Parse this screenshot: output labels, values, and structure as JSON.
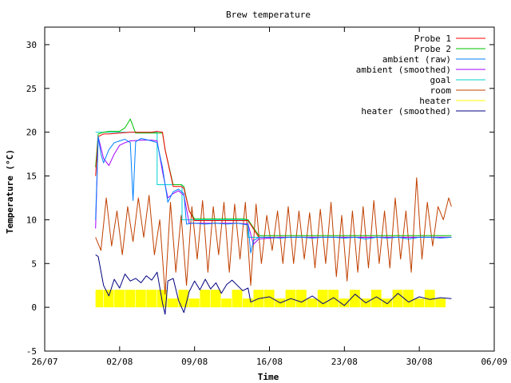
{
  "chart_data": {
    "type": "line",
    "title": "Brew temperature",
    "xlabel": "Time",
    "ylabel": "Temperature (°C)",
    "x_type": "date",
    "x_ticks": [
      "26/07",
      "02/08",
      "09/08",
      "16/08",
      "23/08",
      "30/08",
      "06/09"
    ],
    "y_ticks": [
      -5,
      0,
      5,
      10,
      15,
      20,
      25,
      30
    ],
    "xlim": [
      "2014-07-26",
      "2014-09-06"
    ],
    "ylim": [
      -5,
      32
    ],
    "grid": false,
    "legend_position": "top-right",
    "series": [
      {
        "name": "Probe 1",
        "color": "#ff0000",
        "style": "line",
        "x": [
          "2014-07-30T18:00",
          "2014-07-31T00:00",
          "2014-07-31T12:00",
          "2014-08-01T00:00",
          "2014-08-02T00:00",
          "2014-08-03T00:00",
          "2014-08-04T00:00",
          "2014-08-05T00:00",
          "2014-08-05T12:00",
          "2014-08-06T00:00",
          "2014-08-06T06:00",
          "2014-08-07T00:00",
          "2014-08-07T18:00",
          "2014-08-08T00:00",
          "2014-08-08T12:00",
          "2014-08-09T00:00",
          "2014-08-10T00:00",
          "2014-08-11T00:00",
          "2014-08-12T00:00",
          "2014-08-13T00:00",
          "2014-08-13T12:00",
          "2014-08-14T00:00",
          "2014-08-15T00:00",
          "2014-08-17T00:00",
          "2014-08-19T00:00",
          "2014-08-21T00:00",
          "2014-08-23T00:00",
          "2014-08-25T00:00",
          "2014-08-27T00:00",
          "2014-08-29T00:00",
          "2014-08-31T00:00",
          "2014-09-01T00:00",
          "2014-09-02T00:00"
        ],
        "y": [
          15,
          19.5,
          19.8,
          19.8,
          19.9,
          20.0,
          20.0,
          20.0,
          20.1,
          20.0,
          18,
          13.8,
          13.8,
          13.6,
          11,
          9.9,
          9.9,
          9.9,
          9.9,
          9.9,
          9.9,
          9.9,
          8.0,
          8.0,
          8.0,
          8.0,
          8.0,
          8.0,
          8.0,
          8.0,
          8.0,
          8.0,
          8.0
        ]
      },
      {
        "name": "Probe 2",
        "color": "#00c000",
        "style": "line",
        "x": [
          "2014-07-30T18:00",
          "2014-07-31T00:00",
          "2014-07-31T12:00",
          "2014-08-01T00:00",
          "2014-08-02T00:00",
          "2014-08-02T12:00",
          "2014-08-03T00:00",
          "2014-08-03T12:00",
          "2014-08-04T00:00",
          "2014-08-05T00:00",
          "2014-08-05T12:00",
          "2014-08-06T00:00",
          "2014-08-06T06:00",
          "2014-08-07T00:00",
          "2014-08-07T18:00",
          "2014-08-08T00:00",
          "2014-08-08T12:00",
          "2014-08-09T00:00",
          "2014-08-10T00:00",
          "2014-08-11T00:00",
          "2014-08-12T00:00",
          "2014-08-13T00:00",
          "2014-08-13T12:00",
          "2014-08-14T00:00",
          "2014-08-15T00:00",
          "2014-08-17T00:00",
          "2014-08-19T00:00",
          "2014-08-21T00:00",
          "2014-08-23T00:00",
          "2014-08-25T00:00",
          "2014-08-27T00:00",
          "2014-08-29T00:00",
          "2014-08-31T00:00",
          "2014-09-01T00:00",
          "2014-09-02T00:00"
        ],
        "y": [
          16,
          19.8,
          20.0,
          20.1,
          20.1,
          20.5,
          21.5,
          19.9,
          19.9,
          19.9,
          19.9,
          19.9,
          18,
          14.0,
          14.0,
          13.8,
          11,
          10.1,
          10.1,
          10.1,
          10.1,
          10.1,
          10.1,
          10.0,
          8.2,
          8.2,
          8.2,
          8.2,
          8.2,
          8.2,
          8.2,
          8.2,
          8.2,
          8.2,
          8.2
        ]
      },
      {
        "name": "ambient (raw)",
        "color": "#0080ff",
        "style": "line",
        "x": [
          "2014-07-30T18:00",
          "2014-07-31T00:00",
          "2014-07-31T06:00",
          "2014-07-31T12:00",
          "2014-08-01T00:00",
          "2014-08-01T12:00",
          "2014-08-02T00:00",
          "2014-08-02T12:00",
          "2014-08-03T00:00",
          "2014-08-03T06:00",
          "2014-08-03T12:00",
          "2014-08-04T00:00",
          "2014-08-05T00:00",
          "2014-08-05T12:00",
          "2014-08-06T00:00",
          "2014-08-06T12:00",
          "2014-08-07T00:00",
          "2014-08-07T12:00",
          "2014-08-08T00:00",
          "2014-08-08T06:00",
          "2014-08-08T18:00",
          "2014-08-09T00:00",
          "2014-08-10T00:00",
          "2014-08-11T00:00",
          "2014-08-12T00:00",
          "2014-08-13T00:00",
          "2014-08-13T12:00",
          "2014-08-14T00:00",
          "2014-08-14T06:00",
          "2014-08-14T12:00",
          "2014-08-15T00:00",
          "2014-08-16T00:00",
          "2014-08-17T00:00",
          "2014-08-18T00:00",
          "2014-08-19T00:00",
          "2014-08-20T00:00",
          "2014-08-21T00:00",
          "2014-08-22T00:00",
          "2014-08-23T00:00",
          "2014-08-24T00:00",
          "2014-08-25T00:00",
          "2014-08-26T00:00",
          "2014-08-27T00:00",
          "2014-08-28T00:00",
          "2014-08-29T00:00",
          "2014-08-30T00:00",
          "2014-08-31T00:00",
          "2014-09-01T00:00",
          "2014-09-02T00:00"
        ],
        "y": [
          10,
          19.5,
          17.5,
          16.5,
          18,
          18.8,
          19.0,
          19.2,
          18.8,
          12.2,
          18.9,
          19.3,
          19.0,
          18.8,
          16,
          12,
          13.2,
          13.5,
          13.0,
          9.5,
          9.6,
          9.6,
          9.5,
          9.6,
          9.5,
          9.6,
          9.5,
          9.4,
          6.2,
          7.6,
          8.0,
          8.0,
          7.9,
          8.0,
          8.0,
          7.9,
          8.0,
          8.0,
          7.9,
          8.0,
          7.8,
          8.0,
          7.9,
          8.0,
          7.8,
          8.0,
          8.0,
          7.9,
          8.0
        ]
      },
      {
        "name": "ambient (smoothed)",
        "color": "#a000ff",
        "style": "line",
        "x": [
          "2014-07-30T18:00",
          "2014-07-31T00:00",
          "2014-07-31T12:00",
          "2014-08-01T00:00",
          "2014-08-01T12:00",
          "2014-08-02T00:00",
          "2014-08-02T12:00",
          "2014-08-03T00:00",
          "2014-08-04T00:00",
          "2014-08-05T00:00",
          "2014-08-05T12:00",
          "2014-08-06T00:00",
          "2014-08-06T12:00",
          "2014-08-07T00:00",
          "2014-08-07T12:00",
          "2014-08-08T00:00",
          "2014-08-08T12:00",
          "2014-08-09T00:00",
          "2014-08-10T00:00",
          "2014-08-11T00:00",
          "2014-08-12T00:00",
          "2014-08-13T00:00",
          "2014-08-14T00:00",
          "2014-08-14T12:00",
          "2014-08-15T00:00",
          "2014-08-17T00:00",
          "2014-08-19T00:00",
          "2014-08-21T00:00",
          "2014-08-23T00:00",
          "2014-08-25T00:00",
          "2014-08-27T00:00",
          "2014-08-29T00:00",
          "2014-08-31T00:00",
          "2014-09-02T00:00"
        ],
        "y": [
          9,
          19.5,
          17.0,
          16.2,
          17.5,
          18.5,
          18.8,
          19.0,
          19.1,
          19.1,
          19.0,
          15.5,
          12.5,
          13.0,
          13.3,
          12.8,
          9.6,
          9.6,
          9.6,
          9.6,
          9.6,
          9.6,
          9.5,
          7.2,
          7.8,
          8.0,
          8.0,
          8.0,
          8.0,
          8.0,
          8.0,
          8.0,
          8.0,
          8.0
        ]
      },
      {
        "name": "goal",
        "color": "#00d0d0",
        "style": "line",
        "x": [
          "2014-07-30T18:00",
          "2014-08-05T12:00",
          "2014-08-05T12:00",
          "2014-08-07T20:00",
          "2014-08-07T20:00",
          "2014-08-14T00:00",
          "2014-08-14T00:00",
          "2014-09-02T00:00"
        ],
        "y": [
          20,
          20,
          14,
          14,
          10,
          10,
          8,
          8
        ]
      },
      {
        "name": "room",
        "color": "#c04000",
        "style": "line",
        "x": [
          "2014-07-30T18:00",
          "2014-07-31T06:00",
          "2014-07-31T18:00",
          "2014-08-01T06:00",
          "2014-08-01T18:00",
          "2014-08-02T06:00",
          "2014-08-02T18:00",
          "2014-08-03T06:00",
          "2014-08-03T18:00",
          "2014-08-04T06:00",
          "2014-08-04T18:00",
          "2014-08-05T06:00",
          "2014-08-05T18:00",
          "2014-08-06T06:00",
          "2014-08-06T18:00",
          "2014-08-07T06:00",
          "2014-08-07T18:00",
          "2014-08-08T06:00",
          "2014-08-08T18:00",
          "2014-08-09T06:00",
          "2014-08-09T18:00",
          "2014-08-10T06:00",
          "2014-08-10T18:00",
          "2014-08-11T06:00",
          "2014-08-11T18:00",
          "2014-08-12T06:00",
          "2014-08-12T18:00",
          "2014-08-13T06:00",
          "2014-08-13T18:00",
          "2014-08-14T06:00",
          "2014-08-14T18:00",
          "2014-08-15T06:00",
          "2014-08-15T18:00",
          "2014-08-16T06:00",
          "2014-08-16T18:00",
          "2014-08-17T06:00",
          "2014-08-17T18:00",
          "2014-08-18T06:00",
          "2014-08-18T18:00",
          "2014-08-19T06:00",
          "2014-08-19T18:00",
          "2014-08-20T06:00",
          "2014-08-20T18:00",
          "2014-08-21T06:00",
          "2014-08-21T18:00",
          "2014-08-22T06:00",
          "2014-08-22T18:00",
          "2014-08-23T06:00",
          "2014-08-23T18:00",
          "2014-08-24T06:00",
          "2014-08-24T18:00",
          "2014-08-25T06:00",
          "2014-08-25T18:00",
          "2014-08-26T06:00",
          "2014-08-26T18:00",
          "2014-08-27T06:00",
          "2014-08-27T18:00",
          "2014-08-28T06:00",
          "2014-08-28T18:00",
          "2014-08-29T06:00",
          "2014-08-29T18:00",
          "2014-08-30T06:00",
          "2014-08-30T18:00",
          "2014-08-31T06:00",
          "2014-08-31T18:00",
          "2014-09-01T06:00",
          "2014-09-01T18:00",
          "2014-09-02T00:00"
        ],
        "y": [
          8,
          6.5,
          12.5,
          7,
          11,
          6,
          11.5,
          7.5,
          12.5,
          8,
          12.8,
          6,
          10,
          1.5,
          12,
          4,
          10.5,
          2.5,
          11.5,
          5.5,
          12.2,
          4,
          11.5,
          6,
          12,
          4,
          11.8,
          5.5,
          12,
          2.5,
          11.8,
          5,
          10.5,
          6.5,
          11,
          5,
          11.5,
          5,
          11,
          5.5,
          10.8,
          4.5,
          11.2,
          5,
          12,
          3.5,
          10.5,
          3,
          11,
          4,
          11.5,
          4.5,
          12.2,
          5,
          11,
          4.5,
          12.5,
          5.5,
          11,
          4,
          14.8,
          5.5,
          12,
          7,
          11.5,
          10,
          12.5,
          11.5
        ]
      },
      {
        "name": "heater",
        "color": "#ffff00",
        "style": "bars",
        "x": [
          "2014-07-30T18:00",
          "2014-07-31T12:00",
          "2014-08-01T12:00",
          "2014-08-02T12:00",
          "2014-08-03T12:00",
          "2014-08-04T12:00",
          "2014-08-05T12:00",
          "2014-08-06T12:00",
          "2014-08-07T12:00",
          "2014-08-08T12:00",
          "2014-08-09T12:00",
          "2014-08-10T12:00",
          "2014-08-11T12:00",
          "2014-08-12T12:00",
          "2014-08-13T12:00",
          "2014-08-14T12:00",
          "2014-08-15T12:00",
          "2014-08-16T12:00",
          "2014-08-17T12:00",
          "2014-08-18T12:00",
          "2014-08-19T12:00",
          "2014-08-20T12:00",
          "2014-08-21T12:00",
          "2014-08-22T12:00",
          "2014-08-23T12:00",
          "2014-08-24T12:00",
          "2014-08-25T12:00",
          "2014-08-26T12:00",
          "2014-08-27T12:00",
          "2014-08-28T12:00",
          "2014-08-29T12:00",
          "2014-08-30T12:00",
          "2014-08-31T12:00",
          "2014-09-01T12:00"
        ],
        "y": [
          2,
          2,
          2,
          2,
          2,
          2,
          2,
          1,
          2,
          1,
          2,
          2,
          1,
          2,
          1,
          2,
          2,
          1,
          2,
          2,
          1,
          2,
          2,
          1,
          2,
          1,
          2,
          1,
          2,
          2,
          1,
          2,
          1,
          2
        ]
      },
      {
        "name": "heater (smoothed)",
        "color": "#000080",
        "style": "line",
        "x": [
          "2014-07-30T18:00",
          "2014-07-31T00:00",
          "2014-07-31T12:00",
          "2014-08-01T00:00",
          "2014-08-01T12:00",
          "2014-08-02T00:00",
          "2014-08-02T12:00",
          "2014-08-03T00:00",
          "2014-08-03T12:00",
          "2014-08-04T00:00",
          "2014-08-04T12:00",
          "2014-08-05T00:00",
          "2014-08-05T12:00",
          "2014-08-06T00:00",
          "2014-08-06T06:00",
          "2014-08-06T12:00",
          "2014-08-07T00:00",
          "2014-08-07T12:00",
          "2014-08-08T00:00",
          "2014-08-08T12:00",
          "2014-08-09T00:00",
          "2014-08-09T12:00",
          "2014-08-10T00:00",
          "2014-08-10T12:00",
          "2014-08-11T00:00",
          "2014-08-11T12:00",
          "2014-08-12T00:00",
          "2014-08-12T12:00",
          "2014-08-13T00:00",
          "2014-08-13T12:00",
          "2014-08-14T00:00",
          "2014-08-14T06:00",
          "2014-08-15T00:00",
          "2014-08-16T00:00",
          "2014-08-17T00:00",
          "2014-08-18T00:00",
          "2014-08-19T00:00",
          "2014-08-20T00:00",
          "2014-08-21T00:00",
          "2014-08-22T00:00",
          "2014-08-23T00:00",
          "2014-08-24T00:00",
          "2014-08-25T00:00",
          "2014-08-26T00:00",
          "2014-08-27T00:00",
          "2014-08-28T00:00",
          "2014-08-29T00:00",
          "2014-08-30T00:00",
          "2014-08-31T00:00",
          "2014-09-01T00:00",
          "2014-09-02T00:00"
        ],
        "y": [
          6,
          5.8,
          2.5,
          1.3,
          3.2,
          2.2,
          3.8,
          3.0,
          3.3,
          2.8,
          3.6,
          3.1,
          4.0,
          0.5,
          -0.8,
          3.0,
          3.3,
          0.8,
          -0.6,
          1.8,
          3.0,
          2.0,
          3.2,
          2.1,
          2.8,
          1.6,
          2.6,
          3.1,
          2.5,
          1.9,
          2.2,
          0.6,
          1.0,
          1.2,
          0.5,
          1.0,
          0.6,
          1.3,
          0.4,
          1.1,
          0.2,
          1.5,
          0.5,
          1.2,
          0.4,
          1.6,
          0.6,
          1.2,
          0.9,
          1.1,
          1.0
        ]
      }
    ]
  }
}
